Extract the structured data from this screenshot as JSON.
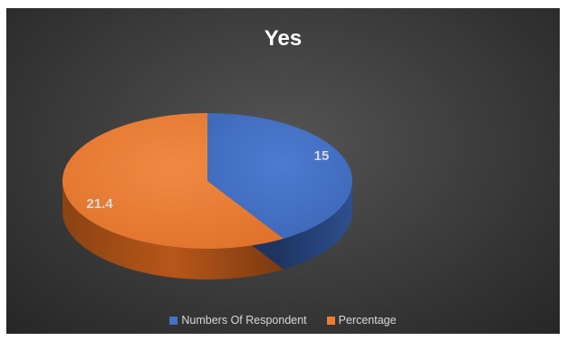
{
  "chart_data": {
    "type": "pie",
    "title": "Yes",
    "categories": [
      "Numbers Of Respondent",
      "Percentage"
    ],
    "values": [
      15,
      21.4
    ],
    "data_labels": [
      "15",
      "21.4"
    ],
    "colors": [
      "#4472c4",
      "#ed7d31"
    ],
    "legend_position": "bottom",
    "style": "3d-pie",
    "background": "#3a3a3a"
  }
}
